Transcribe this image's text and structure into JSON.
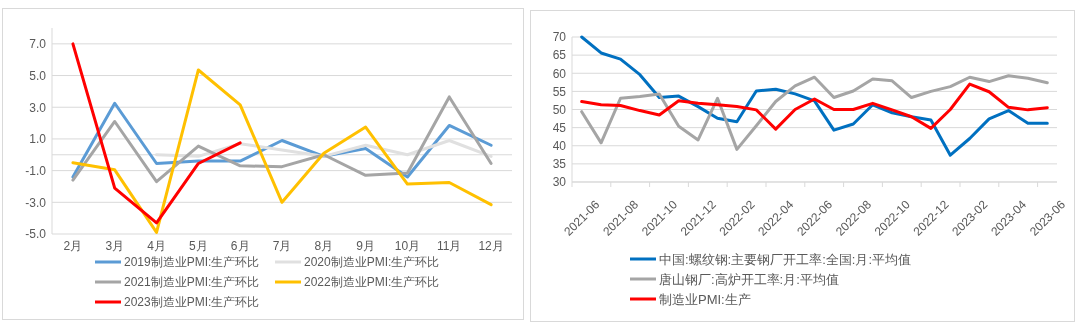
{
  "chart_data": [
    {
      "type": "line",
      "categories": [
        "2月",
        "3月",
        "4月",
        "5月",
        "6月",
        "7月",
        "8月",
        "9月",
        "10月",
        "11月",
        "12月"
      ],
      "ylim": [
        -5,
        8
      ],
      "yticks": [
        {
          "value": -5,
          "label": "-5.0"
        },
        {
          "value": -3,
          "label": "-3.0"
        },
        {
          "value": -1,
          "label": "-1.0"
        },
        {
          "value": 1,
          "label": "1.0"
        },
        {
          "value": 3,
          "label": "3.0"
        },
        {
          "value": 5,
          "label": "5.0"
        },
        {
          "value": 7,
          "label": "7.0"
        }
      ],
      "grid": "y",
      "legend": "bottom",
      "series": [
        {
          "name": "2019制造业PMI:生产环比",
          "color": "#5b9bd5",
          "values": [
            -1.4,
            3.25,
            -0.55,
            -0.4,
            -0.4,
            0.9,
            -0.1,
            0.4,
            -1.4,
            1.85,
            0.6
          ]
        },
        {
          "name": "2020制造业PMI:生产环比",
          "color": "#e0e0e0",
          "values": [
            null,
            null,
            0,
            -0.1,
            0.7,
            0.3,
            -0.1,
            0.6,
            0,
            0.9,
            -0.1
          ]
        },
        {
          "name": "2021制造业PMI:生产环比",
          "color": "#a5a5a5",
          "values": [
            -1.6,
            2.1,
            -1.7,
            0.55,
            -0.7,
            -0.75,
            0,
            -1.3,
            -1.15,
            3.65,
            -0.55
          ]
        },
        {
          "name": "2022制造业PMI:生产环比",
          "color": "#ffc000",
          "values": [
            -0.5,
            -0.95,
            -4.9,
            5.35,
            3.15,
            -3.0,
            0.1,
            1.75,
            -1.85,
            -1.75,
            -3.15
          ]
        },
        {
          "name": "2023制造业PMI:生产环比",
          "color": "#ff0000",
          "values": [
            7.0,
            -2.1,
            -4.3,
            -0.55,
            0.75,
            null,
            null,
            null,
            null,
            null,
            null
          ]
        }
      ]
    },
    {
      "type": "line",
      "categories": [
        "2021-06",
        null,
        "2021-08",
        null,
        "2021-10",
        null,
        "2021-12",
        null,
        "2022-02",
        null,
        "2022-04",
        null,
        "2022-06",
        null,
        "2022-08",
        null,
        "2022-10",
        null,
        "2022-12",
        null,
        "2023-02",
        null,
        "2023-04",
        null,
        "2023-06"
      ],
      "ylim": [
        30,
        70
      ],
      "yticks": [
        30,
        35,
        40,
        45,
        50,
        55,
        60,
        65,
        70
      ],
      "grid": "y",
      "legend": "bottom",
      "series": [
        {
          "name": "中国:螺纹钢:主要钢厂开工率:全国:月:平均值",
          "color": "#0070c0",
          "values": [
            70,
            65.6,
            63.9,
            59.6,
            53.3,
            53.7,
            50.8,
            47.6,
            46.6,
            55.1,
            55.6,
            54.3,
            52.4,
            44.3,
            46,
            51.3,
            49.1,
            48,
            47.1,
            37.4,
            42,
            47.4,
            49.7,
            46.2,
            46.2
          ]
        },
        {
          "name": "唐山钢厂:高炉开工率:月:平均值",
          "color": "#a5a5a5",
          "values": [
            49.4,
            40.8,
            53.1,
            53.6,
            54.3,
            45.4,
            41.6,
            53.1,
            39,
            45.5,
            52.2,
            56.5,
            58.9,
            53.3,
            55.1,
            58.4,
            57.9,
            53.3,
            55,
            56.3,
            58.9,
            57.7,
            59.3,
            58.6,
            57.4
          ]
        },
        {
          "name": "制造业PMI:生产",
          "color": "#ff0000",
          "values": [
            52.2,
            51.3,
            51.1,
            49.7,
            48.5,
            52.4,
            51.7,
            51.3,
            50.8,
            49.9,
            44.6,
            50,
            52.9,
            50,
            50,
            51.7,
            49.9,
            48,
            44.8,
            50,
            57,
            54.9,
            50.6,
            49.9,
            50.5
          ]
        }
      ]
    }
  ]
}
